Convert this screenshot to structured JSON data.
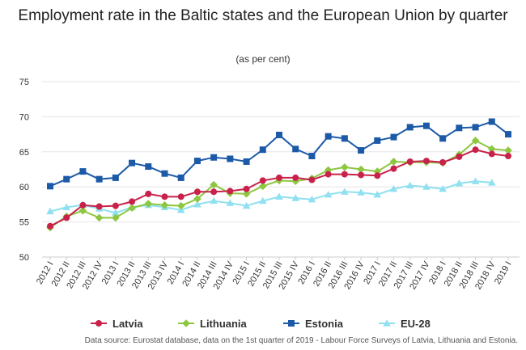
{
  "chart_data": {
    "type": "line",
    "title": "Employment rate in the Baltic states and the European Union by quarter",
    "subtitle": "(as per cent)",
    "source": "Data source: Eurostat database, data on the 1st quarter of 2019 - Labour Force Surveys of Latvia, Lithuania and Estonia.",
    "ylim": [
      50,
      75
    ],
    "yticks": [
      50,
      55,
      60,
      65,
      70,
      75
    ],
    "grid": true,
    "legend_position": "bottom",
    "categories": [
      "2012 I",
      "2012 II",
      "2012 III",
      "2012 IV",
      "2013 I",
      "2013 II",
      "2013 III",
      "2013 IV",
      "2014 I",
      "2014 II",
      "2014 III",
      "2014 IV",
      "2015 I",
      "2015 II",
      "2015 III",
      "2015 IV",
      "2016 I",
      "2016 II",
      "2016 III",
      "2016 IV",
      "2017 I",
      "2017 II",
      "2017 III",
      "2017 IV",
      "2018 I",
      "2018 II",
      "2018 III",
      "2018 IV",
      "2019 I"
    ],
    "series": [
      {
        "name": "Latvia",
        "color": "#c8224a",
        "marker": "circle",
        "values": [
          54.4,
          55.6,
          57.4,
          57.2,
          57.3,
          57.9,
          59.0,
          58.6,
          58.6,
          59.3,
          59.3,
          59.4,
          59.7,
          60.9,
          61.3,
          61.3,
          61.0,
          61.8,
          61.8,
          61.7,
          61.6,
          62.6,
          63.6,
          63.7,
          63.5,
          64.3,
          65.3,
          64.7,
          64.4
        ]
      },
      {
        "name": "Lithuania",
        "color": "#8dc63f",
        "marker": "diamond",
        "values": [
          54.2,
          55.8,
          56.6,
          55.6,
          55.6,
          57.0,
          57.6,
          57.4,
          57.3,
          58.3,
          60.3,
          59.1,
          59.0,
          60.1,
          60.9,
          60.8,
          61.2,
          62.4,
          62.8,
          62.5,
          62.2,
          63.6,
          63.5,
          63.5,
          63.4,
          64.6,
          66.6,
          65.4,
          65.2
        ]
      },
      {
        "name": "Estonia",
        "color": "#1c5aa8",
        "marker": "square",
        "values": [
          60.1,
          61.1,
          62.2,
          61.1,
          61.3,
          63.4,
          62.9,
          61.9,
          61.3,
          63.7,
          64.2,
          64.0,
          63.6,
          65.3,
          67.4,
          65.4,
          64.4,
          67.2,
          66.9,
          65.2,
          66.6,
          67.1,
          68.5,
          68.7,
          66.9,
          68.4,
          68.5,
          69.3,
          67.5
        ]
      },
      {
        "name": "EU-28",
        "color": "#8fe0f0",
        "marker": "triangle",
        "values": [
          56.5,
          57.1,
          57.4,
          56.9,
          56.3,
          57.1,
          57.4,
          57.1,
          56.7,
          57.5,
          58.0,
          57.7,
          57.3,
          58.0,
          58.6,
          58.4,
          58.2,
          58.9,
          59.3,
          59.2,
          58.9,
          59.7,
          60.2,
          60.0,
          59.7,
          60.5,
          60.8,
          60.6,
          null
        ]
      }
    ]
  }
}
